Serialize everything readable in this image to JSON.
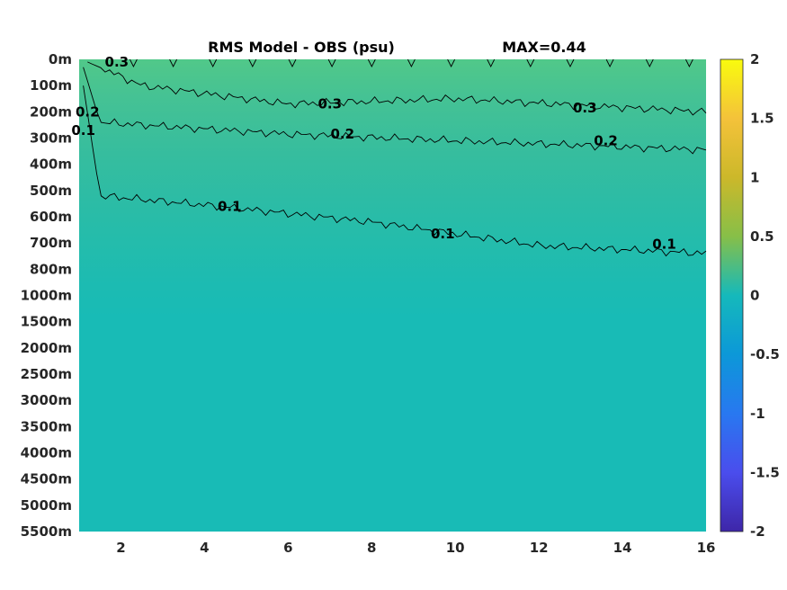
{
  "chart_data": {
    "type": "heatmap",
    "title": "RMS Model - OBS (psu)",
    "max_text": "MAX=0.44",
    "xlabel": "",
    "ylabel": "",
    "xlim": [
      1,
      16
    ],
    "x_ticks": [
      2,
      4,
      6,
      8,
      10,
      12,
      14,
      16
    ],
    "y_ticks": [
      "0m",
      "100m",
      "200m",
      "300m",
      "400m",
      "500m",
      "600m",
      "700m",
      "800m",
      "1000m",
      "1500m",
      "2000m",
      "2500m",
      "3000m",
      "3500m",
      "4000m",
      "4500m",
      "5000m",
      "5500m"
    ],
    "colorbar": {
      "limits": [
        -2,
        2
      ],
      "ticks": [
        "2",
        "1.5",
        "1",
        "0.5",
        "0",
        "-0.5",
        "-1",
        "-1.5",
        "-2"
      ],
      "colormap": "parula"
    },
    "field_samples": {
      "depth_levels": [
        "0m",
        "100m",
        "200m",
        "300m",
        "400m",
        "500m",
        "600m",
        "700m",
        "800m",
        "1000m",
        "1500m",
        "2000m",
        "2500m",
        "3000m",
        "3500m",
        "4000m",
        "4500m",
        "5000m",
        "5500m"
      ],
      "values_left": [
        0.38,
        0.36,
        0.3,
        0.24,
        0.18,
        0.14,
        0.1,
        0.08,
        0.05,
        0.03,
        0.02,
        0.02,
        0.02,
        0.02,
        0.02,
        0.02,
        0.02,
        0.02,
        0.02
      ],
      "values_right": [
        0.4,
        0.34,
        0.3,
        0.25,
        0.22,
        0.18,
        0.14,
        0.11,
        0.09,
        0.06,
        0.03,
        0.02,
        0.02,
        0.02,
        0.02,
        0.02,
        0.02,
        0.02,
        0.02
      ]
    },
    "contours": [
      {
        "level": 0.3,
        "label": "0.3",
        "depth_at_x": [
          [
            1.2,
            10
          ],
          [
            2.5,
            100
          ],
          [
            6,
            170
          ],
          [
            10,
            150
          ],
          [
            16,
            200
          ]
        ]
      },
      {
        "level": 0.2,
        "label": "0.2",
        "depth_at_x": [
          [
            1.1,
            30
          ],
          [
            1.5,
            240
          ],
          [
            6,
            285
          ],
          [
            10,
            310
          ],
          [
            16,
            345
          ]
        ]
      },
      {
        "level": 0.1,
        "label": "0.1",
        "depth_at_x": [
          [
            1.1,
            100
          ],
          [
            1.5,
            520
          ],
          [
            4,
            555
          ],
          [
            8,
            620
          ],
          [
            12,
            710
          ],
          [
            16,
            740
          ]
        ]
      }
    ],
    "contour_labels": [
      {
        "text": "0.3",
        "x": 1.9,
        "depth": 10
      },
      {
        "text": "0.3",
        "x": 7.0,
        "depth": 170
      },
      {
        "text": "0.3",
        "x": 13.1,
        "depth": 185
      },
      {
        "text": "0.2",
        "x": 1.2,
        "depth": 200
      },
      {
        "text": "0.2",
        "x": 7.3,
        "depth": 285
      },
      {
        "text": "0.2",
        "x": 13.6,
        "depth": 310
      },
      {
        "text": "0.1",
        "x": 1.1,
        "depth": 270
      },
      {
        "text": "0.1",
        "x": 4.6,
        "depth": 560
      },
      {
        "text": "0.1",
        "x": 9.7,
        "depth": 665
      },
      {
        "text": "0.1",
        "x": 15.0,
        "depth": 705
      }
    ]
  }
}
